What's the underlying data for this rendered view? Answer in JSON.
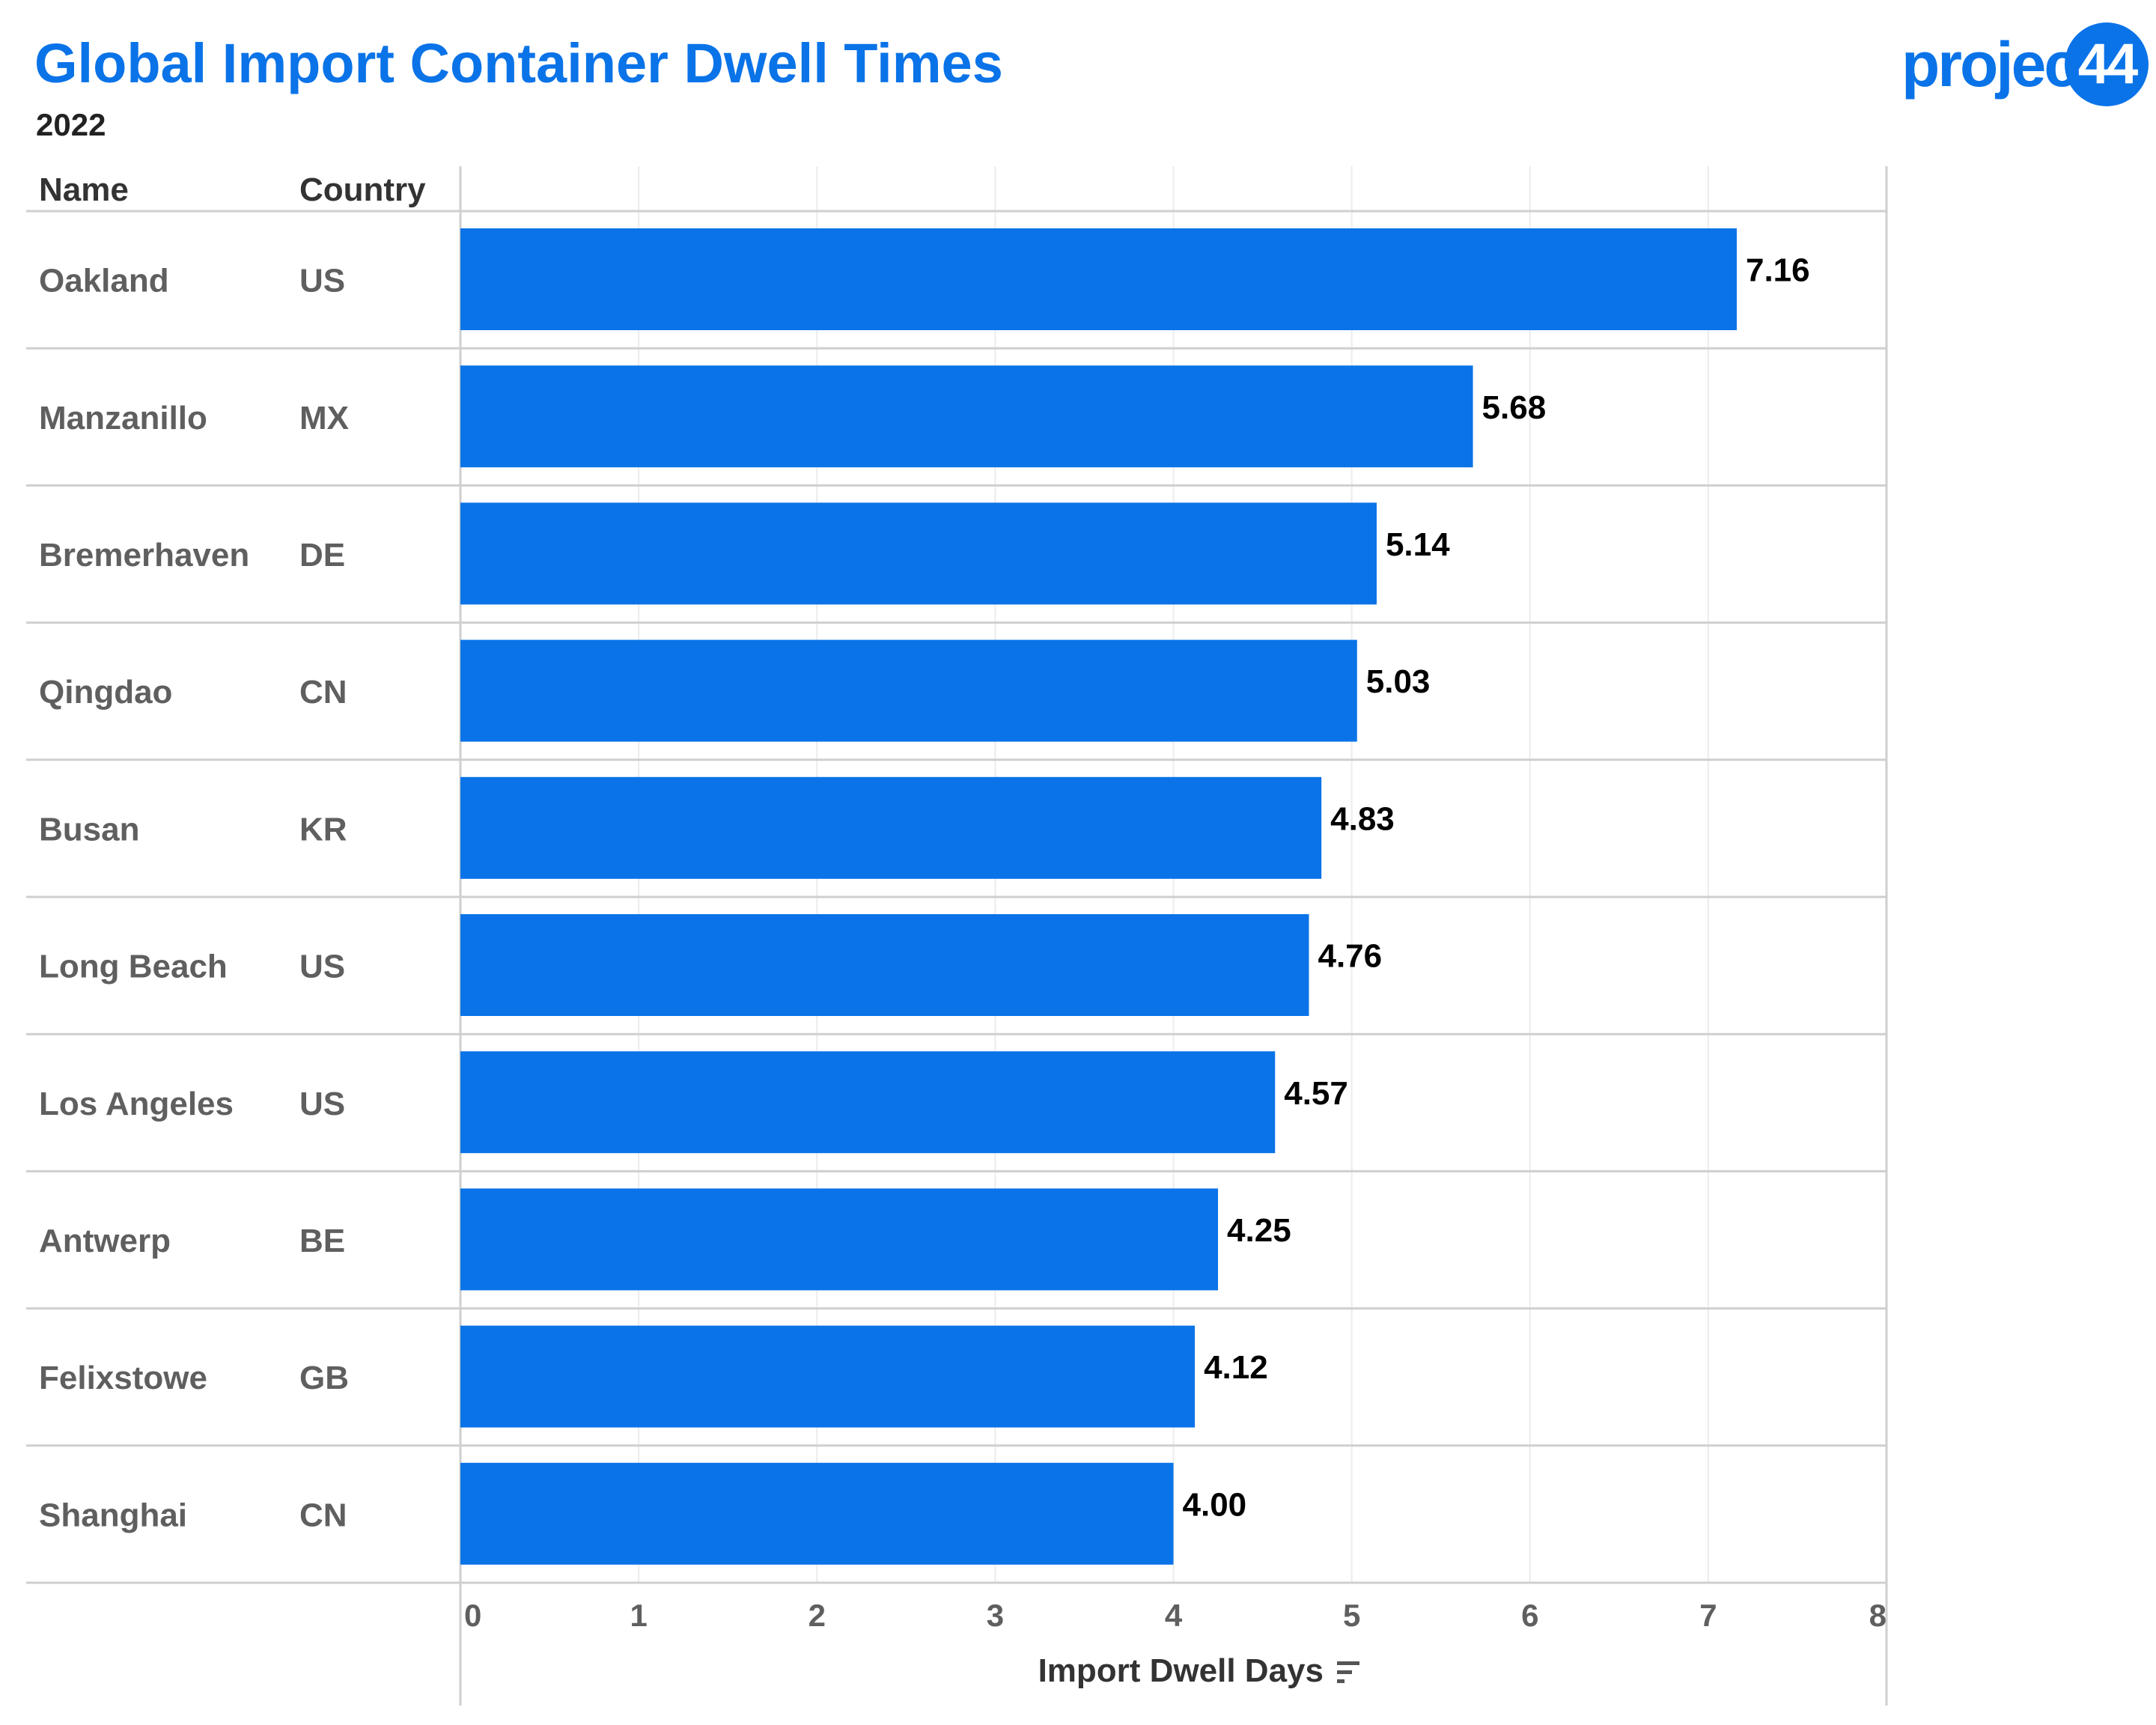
{
  "header": {
    "title": "Global Import Container Dwell Times",
    "subtitle": "2022"
  },
  "logo": {
    "text": "project",
    "badge": "44",
    "color": "#0a73e8"
  },
  "table": {
    "columns": [
      "Name",
      "Country"
    ]
  },
  "sort_icon": "sort-descending-icon",
  "colors": {
    "bar": "#0a73e8",
    "title": "#0a73e8",
    "row_text": "#5f5f5f",
    "header_text": "#333333",
    "value_text": "#000000",
    "grid": "#ececec",
    "rule": "#cfcfcf"
  },
  "chart_data": {
    "type": "bar",
    "orientation": "horizontal",
    "title": "Global Import Container Dwell Times",
    "subtitle": "2022",
    "xlabel": "Import Dwell Days",
    "ylabel": "",
    "xlim": [
      0,
      8
    ],
    "xticks": [
      0,
      1,
      2,
      3,
      4,
      5,
      6,
      7,
      8
    ],
    "grid": true,
    "rows": [
      {
        "name": "Oakland",
        "country": "US",
        "value": 7.16,
        "label": "7.16"
      },
      {
        "name": "Manzanillo",
        "country": "MX",
        "value": 5.68,
        "label": "5.68"
      },
      {
        "name": "Bremerhaven",
        "country": "DE",
        "value": 5.14,
        "label": "5.14"
      },
      {
        "name": "Qingdao",
        "country": "CN",
        "value": 5.03,
        "label": "5.03"
      },
      {
        "name": "Busan",
        "country": "KR",
        "value": 4.83,
        "label": "4.83"
      },
      {
        "name": "Long Beach",
        "country": "US",
        "value": 4.76,
        "label": "4.76"
      },
      {
        "name": "Los Angeles",
        "country": "US",
        "value": 4.57,
        "label": "4.57"
      },
      {
        "name": "Antwerp",
        "country": "BE",
        "value": 4.25,
        "label": "4.25"
      },
      {
        "name": "Felixstowe",
        "country": "GB",
        "value": 4.12,
        "label": "4.12"
      },
      {
        "name": "Shanghai",
        "country": "CN",
        "value": 4.0,
        "label": "4.00"
      }
    ]
  }
}
